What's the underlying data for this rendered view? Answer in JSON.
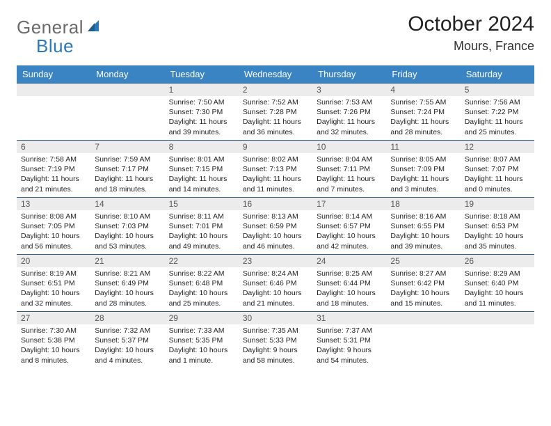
{
  "logo": {
    "part1": "General",
    "part2": "Blue"
  },
  "title": "October 2024",
  "location": "Mours, France",
  "colors": {
    "header_bg": "#3a84c4",
    "header_text": "#ffffff",
    "daynum_bg": "#ececec",
    "border": "#2b5f8a",
    "logo_gray": "#6a6a6a",
    "logo_blue": "#2d79b8"
  },
  "weekdays": [
    "Sunday",
    "Monday",
    "Tuesday",
    "Wednesday",
    "Thursday",
    "Friday",
    "Saturday"
  ],
  "leading_blanks": 2,
  "days": [
    {
      "n": 1,
      "sunrise": "7:50 AM",
      "sunset": "7:30 PM",
      "daylight": "11 hours and 39 minutes."
    },
    {
      "n": 2,
      "sunrise": "7:52 AM",
      "sunset": "7:28 PM",
      "daylight": "11 hours and 36 minutes."
    },
    {
      "n": 3,
      "sunrise": "7:53 AM",
      "sunset": "7:26 PM",
      "daylight": "11 hours and 32 minutes."
    },
    {
      "n": 4,
      "sunrise": "7:55 AM",
      "sunset": "7:24 PM",
      "daylight": "11 hours and 28 minutes."
    },
    {
      "n": 5,
      "sunrise": "7:56 AM",
      "sunset": "7:22 PM",
      "daylight": "11 hours and 25 minutes."
    },
    {
      "n": 6,
      "sunrise": "7:58 AM",
      "sunset": "7:19 PM",
      "daylight": "11 hours and 21 minutes."
    },
    {
      "n": 7,
      "sunrise": "7:59 AM",
      "sunset": "7:17 PM",
      "daylight": "11 hours and 18 minutes."
    },
    {
      "n": 8,
      "sunrise": "8:01 AM",
      "sunset": "7:15 PM",
      "daylight": "11 hours and 14 minutes."
    },
    {
      "n": 9,
      "sunrise": "8:02 AM",
      "sunset": "7:13 PM",
      "daylight": "11 hours and 11 minutes."
    },
    {
      "n": 10,
      "sunrise": "8:04 AM",
      "sunset": "7:11 PM",
      "daylight": "11 hours and 7 minutes."
    },
    {
      "n": 11,
      "sunrise": "8:05 AM",
      "sunset": "7:09 PM",
      "daylight": "11 hours and 3 minutes."
    },
    {
      "n": 12,
      "sunrise": "8:07 AM",
      "sunset": "7:07 PM",
      "daylight": "11 hours and 0 minutes."
    },
    {
      "n": 13,
      "sunrise": "8:08 AM",
      "sunset": "7:05 PM",
      "daylight": "10 hours and 56 minutes."
    },
    {
      "n": 14,
      "sunrise": "8:10 AM",
      "sunset": "7:03 PM",
      "daylight": "10 hours and 53 minutes."
    },
    {
      "n": 15,
      "sunrise": "8:11 AM",
      "sunset": "7:01 PM",
      "daylight": "10 hours and 49 minutes."
    },
    {
      "n": 16,
      "sunrise": "8:13 AM",
      "sunset": "6:59 PM",
      "daylight": "10 hours and 46 minutes."
    },
    {
      "n": 17,
      "sunrise": "8:14 AM",
      "sunset": "6:57 PM",
      "daylight": "10 hours and 42 minutes."
    },
    {
      "n": 18,
      "sunrise": "8:16 AM",
      "sunset": "6:55 PM",
      "daylight": "10 hours and 39 minutes."
    },
    {
      "n": 19,
      "sunrise": "8:18 AM",
      "sunset": "6:53 PM",
      "daylight": "10 hours and 35 minutes."
    },
    {
      "n": 20,
      "sunrise": "8:19 AM",
      "sunset": "6:51 PM",
      "daylight": "10 hours and 32 minutes."
    },
    {
      "n": 21,
      "sunrise": "8:21 AM",
      "sunset": "6:49 PM",
      "daylight": "10 hours and 28 minutes."
    },
    {
      "n": 22,
      "sunrise": "8:22 AM",
      "sunset": "6:48 PM",
      "daylight": "10 hours and 25 minutes."
    },
    {
      "n": 23,
      "sunrise": "8:24 AM",
      "sunset": "6:46 PM",
      "daylight": "10 hours and 21 minutes."
    },
    {
      "n": 24,
      "sunrise": "8:25 AM",
      "sunset": "6:44 PM",
      "daylight": "10 hours and 18 minutes."
    },
    {
      "n": 25,
      "sunrise": "8:27 AM",
      "sunset": "6:42 PM",
      "daylight": "10 hours and 15 minutes."
    },
    {
      "n": 26,
      "sunrise": "8:29 AM",
      "sunset": "6:40 PM",
      "daylight": "10 hours and 11 minutes."
    },
    {
      "n": 27,
      "sunrise": "7:30 AM",
      "sunset": "5:38 PM",
      "daylight": "10 hours and 8 minutes."
    },
    {
      "n": 28,
      "sunrise": "7:32 AM",
      "sunset": "5:37 PM",
      "daylight": "10 hours and 4 minutes."
    },
    {
      "n": 29,
      "sunrise": "7:33 AM",
      "sunset": "5:35 PM",
      "daylight": "10 hours and 1 minute."
    },
    {
      "n": 30,
      "sunrise": "7:35 AM",
      "sunset": "5:33 PM",
      "daylight": "9 hours and 58 minutes."
    },
    {
      "n": 31,
      "sunrise": "7:37 AM",
      "sunset": "5:31 PM",
      "daylight": "9 hours and 54 minutes."
    }
  ],
  "labels": {
    "sunrise": "Sunrise:",
    "sunset": "Sunset:",
    "daylight": "Daylight:"
  }
}
